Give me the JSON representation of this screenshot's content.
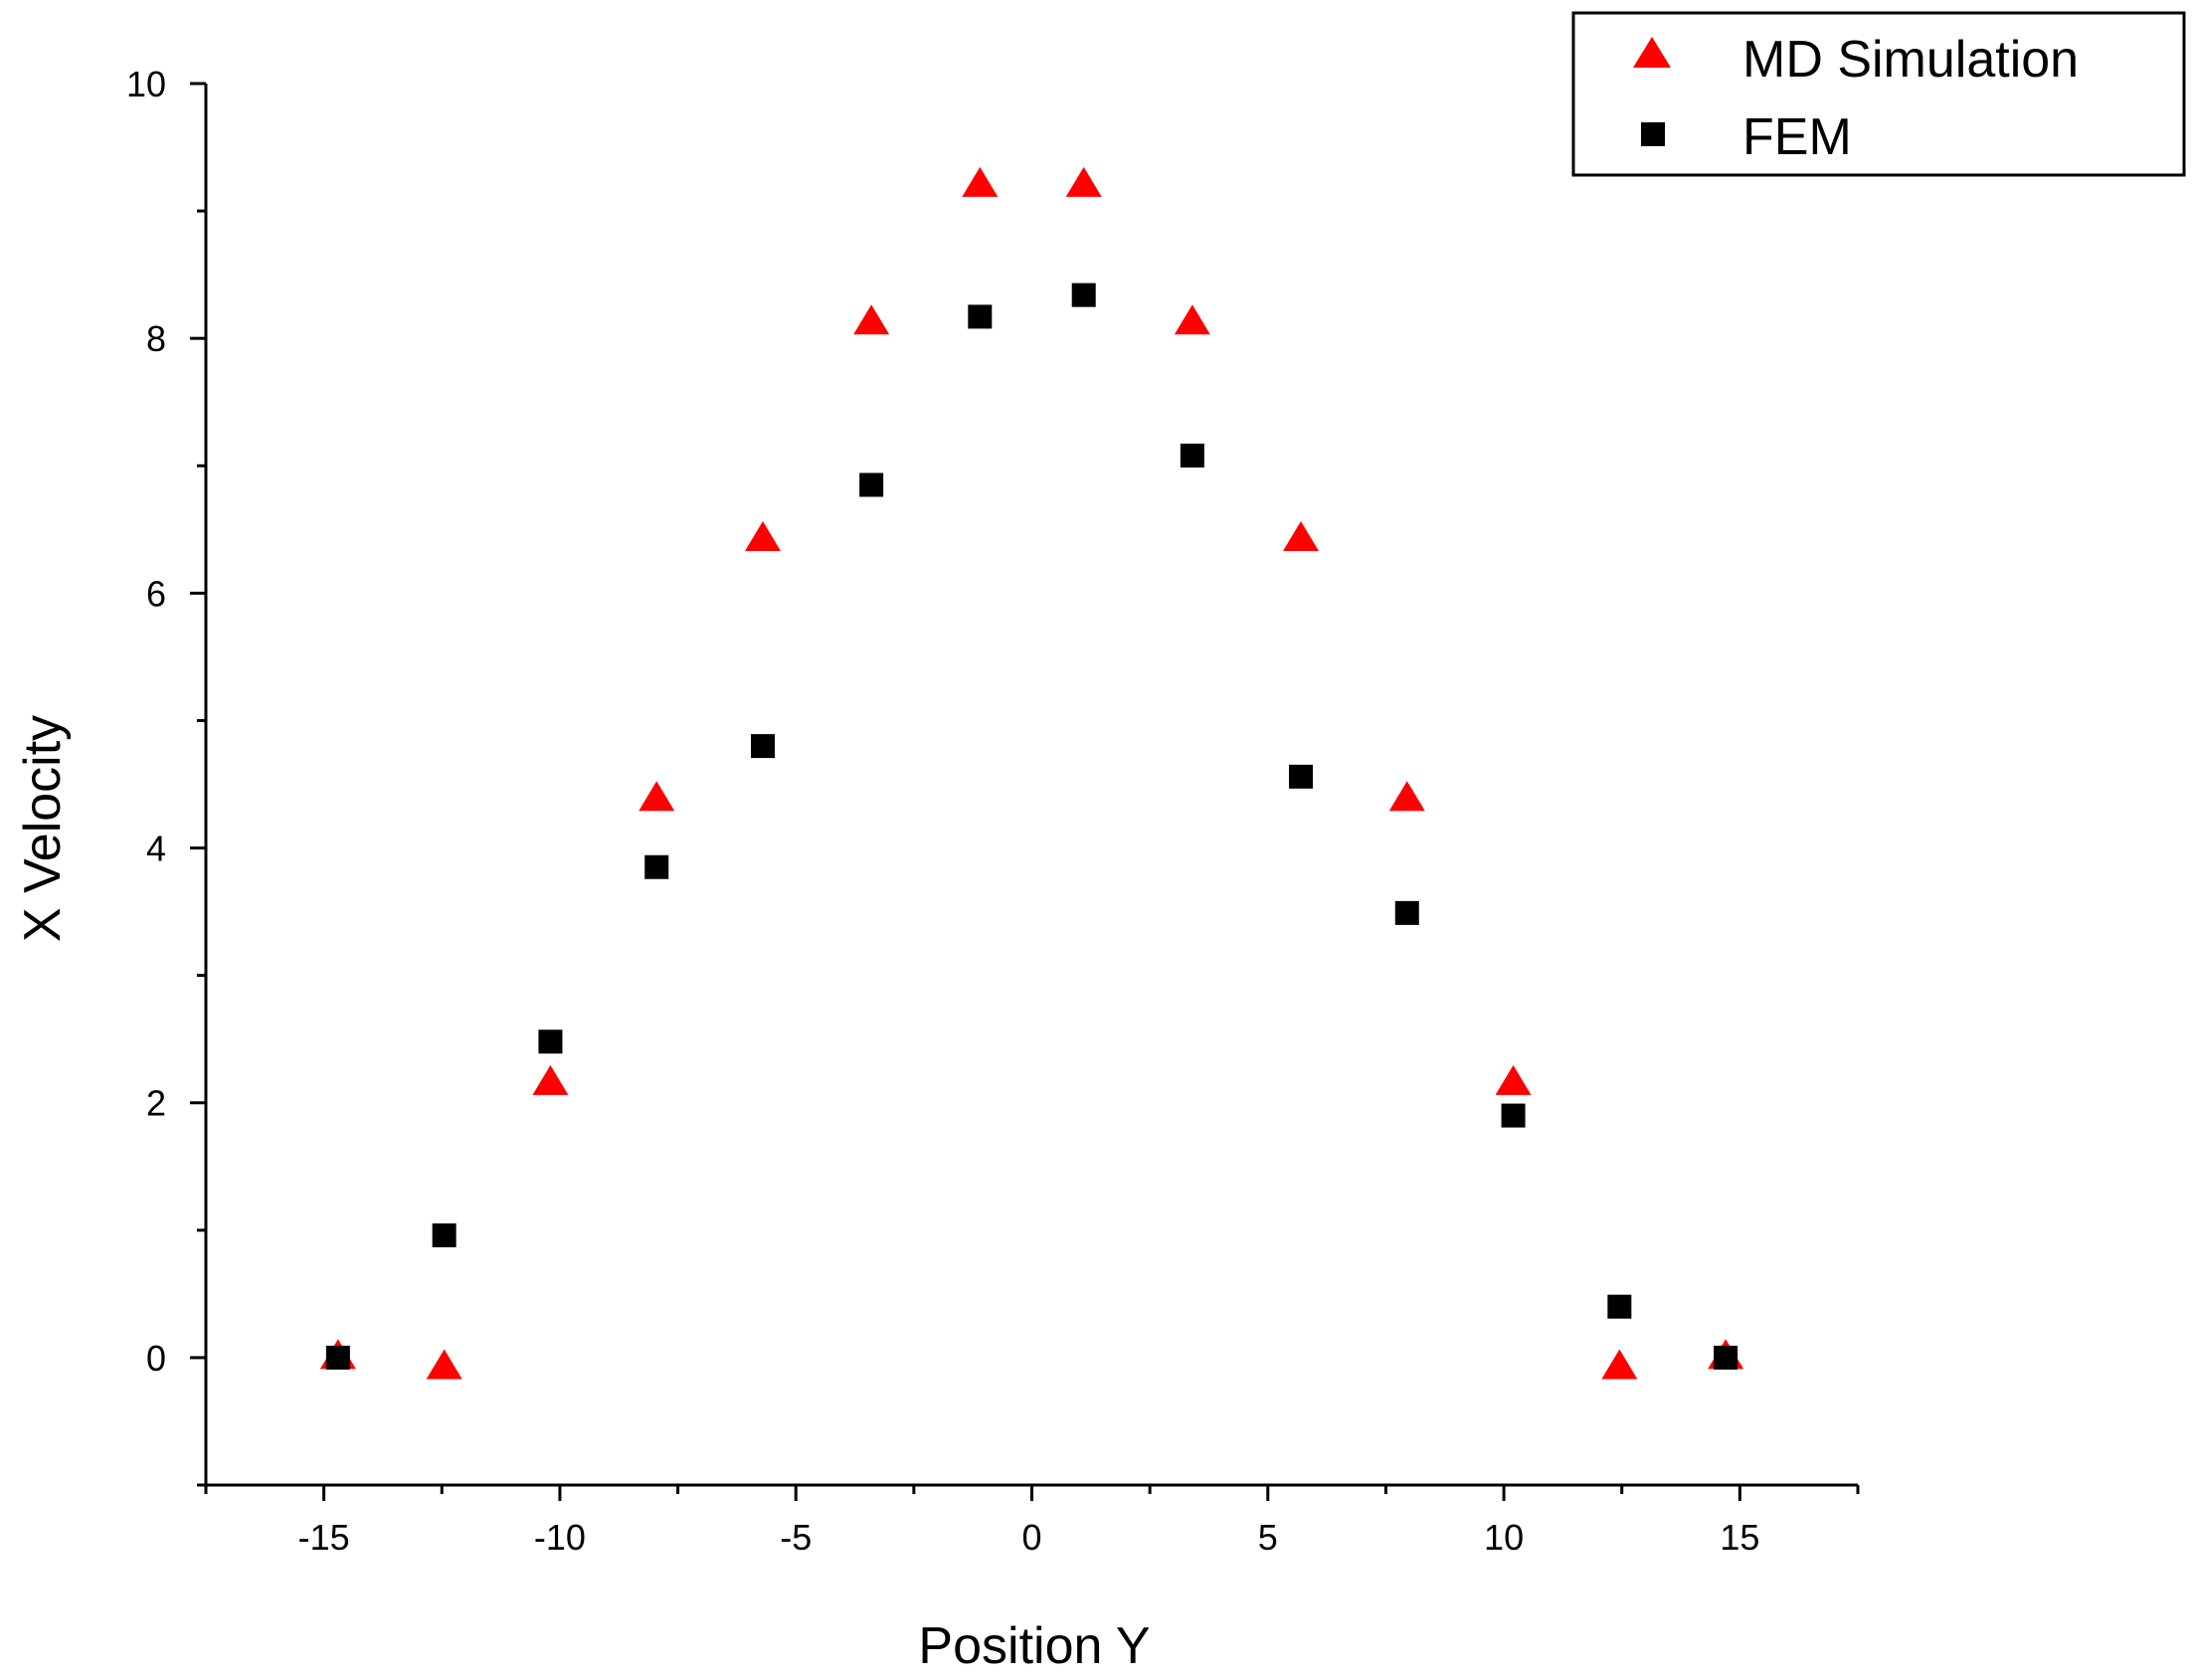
{
  "chart_data": {
    "type": "scatter",
    "title": "",
    "xlabel": "Position Y",
    "ylabel": "X Velocity",
    "xlim": [
      -17.5,
      17.5
    ],
    "ylim": [
      -1,
      10
    ],
    "x_ticks": [
      -15,
      -10,
      -5,
      0,
      5,
      10,
      15
    ],
    "x_tick_labels": [
      "-15",
      "-10",
      "-5",
      "0",
      "5",
      "10",
      "15"
    ],
    "y_ticks": [
      0,
      2,
      4,
      6,
      8,
      10
    ],
    "y_tick_labels": [
      "0",
      "2",
      "4",
      "6",
      "8",
      "10"
    ],
    "grid": false,
    "legend_position": "top-right",
    "series": [
      {
        "name": "MD Simulation",
        "marker": "triangle",
        "color": "#ff0000",
        "points": [
          [
            -14.7,
            0.0
          ],
          [
            -12.45,
            -0.08
          ],
          [
            -10.2,
            2.15
          ],
          [
            -7.95,
            4.38
          ],
          [
            -5.7,
            6.42
          ],
          [
            -3.4,
            8.12
          ],
          [
            -1.1,
            9.2
          ],
          [
            1.1,
            9.2
          ],
          [
            3.4,
            8.12
          ],
          [
            5.7,
            6.42
          ],
          [
            7.95,
            4.38
          ],
          [
            10.2,
            2.15
          ],
          [
            12.45,
            -0.08
          ],
          [
            14.7,
            0.0
          ]
        ]
      },
      {
        "name": "FEM",
        "marker": "square",
        "color": "#000000",
        "points": [
          [
            -14.7,
            0.0
          ],
          [
            -12.45,
            0.96
          ],
          [
            -10.2,
            2.48
          ],
          [
            -7.95,
            3.85
          ],
          [
            -5.7,
            4.8
          ],
          [
            -3.4,
            6.85
          ],
          [
            -1.1,
            8.17
          ],
          [
            1.1,
            8.34
          ],
          [
            3.4,
            7.08
          ],
          [
            5.7,
            4.56
          ],
          [
            7.95,
            3.49
          ],
          [
            10.2,
            1.9
          ],
          [
            12.45,
            0.4
          ],
          [
            14.7,
            0.0
          ]
        ]
      }
    ]
  }
}
